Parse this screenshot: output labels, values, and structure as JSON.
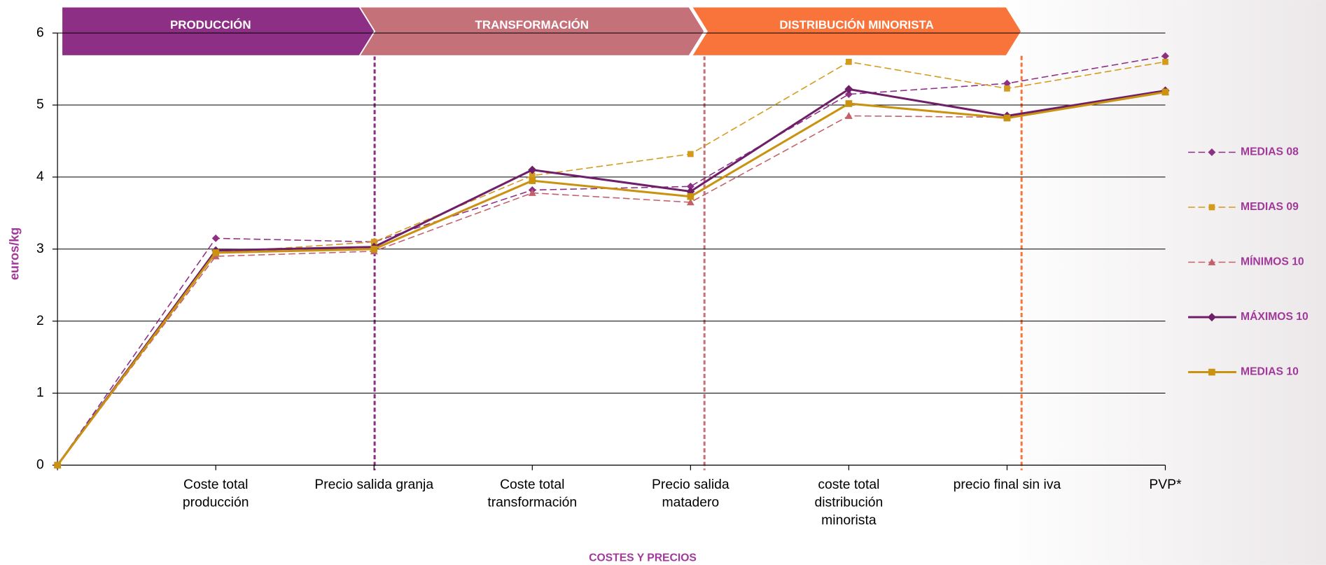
{
  "chart_data": {
    "type": "line",
    "y_label": "euros/kg",
    "x_label": "COSTES Y PRECIOS",
    "stages": [
      {
        "label": "PRODUCCIÓN",
        "color": "#8e2f86"
      },
      {
        "label": "TRANSFORMACIÓN",
        "color": "#c4717a"
      },
      {
        "label": "DISTRIBUCIÓN MINORISTA",
        "color": "#f9743a"
      }
    ],
    "categories": [
      null,
      "Coste total\nproducción",
      "Precio salida granja",
      "Coste total\ntransformación",
      "Precio salida\nmatadero",
      "coste total\ndistribución\nminorista",
      "precio final sin iva",
      "PVP*"
    ],
    "series": [
      {
        "name": "MEDIAS 08",
        "color": "#8e2f86",
        "dashed": true,
        "marker": "diamond",
        "values": [
          0,
          3.15,
          3.1,
          3.82,
          3.87,
          5.15,
          5.3,
          5.68
        ]
      },
      {
        "name": "MEDIAS 09",
        "color": "#d39a1c",
        "dashed": true,
        "marker": "square",
        "values": [
          0,
          2.95,
          3.1,
          4.02,
          4.32,
          5.6,
          5.23,
          5.6
        ]
      },
      {
        "name": "MÍNIMOS 10",
        "color": "#c4606a",
        "dashed": true,
        "marker": "triangle",
        "values": [
          0,
          2.9,
          2.97,
          3.78,
          3.65,
          4.85,
          4.83,
          5.18
        ]
      },
      {
        "name": "MÁXIMOS 10",
        "color": "#6e1f68",
        "dashed": false,
        "marker": "diamond",
        "values": [
          0,
          2.98,
          3.03,
          4.1,
          3.8,
          5.22,
          4.85,
          5.2
        ]
      },
      {
        "name": "MEDIAS 10",
        "color": "#c9920f",
        "dashed": false,
        "marker": "square",
        "values": [
          0,
          2.95,
          3.0,
          3.95,
          3.73,
          5.02,
          4.82,
          5.18
        ]
      }
    ],
    "ylim": [
      0,
      6
    ],
    "yticks": [
      0,
      1,
      2,
      3,
      4,
      5,
      6
    ],
    "grid": true,
    "legend": "right"
  }
}
